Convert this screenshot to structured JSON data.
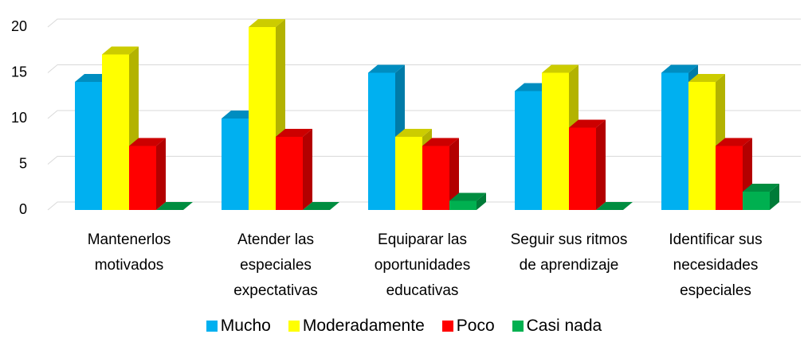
{
  "chart_data": {
    "type": "bar3d",
    "categories": [
      "Mantenerlos motivados",
      "Atender las especiales expectativas",
      "Equiparar las oportunidades educativas",
      "Seguir sus ritmos de aprendizaje",
      "Identificar sus necesidades especiales"
    ],
    "series": [
      {
        "name": "Mucho",
        "color": "#00b0f0",
        "values": [
          14,
          10,
          15,
          13,
          15
        ]
      },
      {
        "name": "Moderadamente",
        "color": "#ffff00",
        "values": [
          17,
          20,
          8,
          15,
          14
        ]
      },
      {
        "name": "Poco",
        "color": "#ff0000",
        "values": [
          7,
          8,
          7,
          9,
          7
        ]
      },
      {
        "name": "Casi nada",
        "color": "#00b050",
        "values": [
          0,
          0,
          1,
          0,
          2
        ]
      }
    ],
    "ylim": [
      0,
      20
    ],
    "yticks": [
      0,
      5,
      10,
      15,
      20
    ],
    "grid": true,
    "legend": "bottom"
  }
}
